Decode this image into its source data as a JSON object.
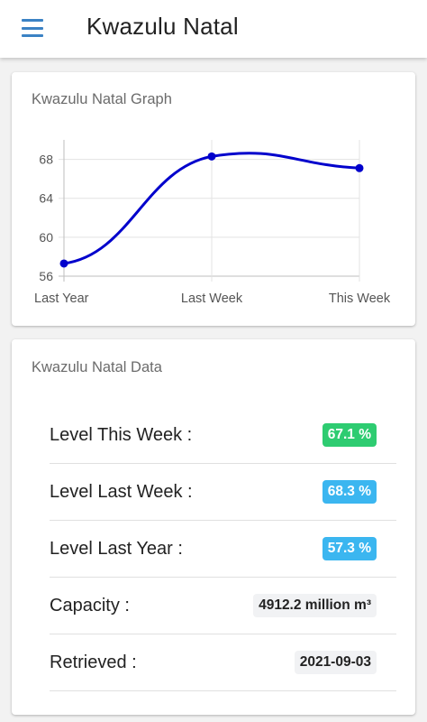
{
  "appbar": {
    "title": "Kwazulu Natal",
    "menu_icon": "hamburger-menu-icon",
    "accent": "#3b82c4"
  },
  "graph_card": {
    "title": "Kwazulu Natal Graph"
  },
  "chart_data": {
    "type": "line",
    "categories": [
      "Last Year",
      "Last Week",
      "This Week"
    ],
    "series": [
      {
        "values": [
          57.3,
          68.3,
          67.1
        ],
        "color": "#0000cc"
      }
    ],
    "yticks": [
      56,
      60,
      64,
      68
    ],
    "ylim": [
      56,
      70
    ],
    "grid": true,
    "smooth": true
  },
  "data_card": {
    "title": "Kwazulu Natal Data",
    "rows": [
      {
        "label": "Level This Week :",
        "value": "67.1 %",
        "style": "green"
      },
      {
        "label": "Level Last Week :",
        "value": "68.3 %",
        "style": "blue"
      },
      {
        "label": "Level Last Year :",
        "value": "57.3 %",
        "style": "blue"
      },
      {
        "label": "Capacity :",
        "value": "4912.2 million m³",
        "style": "plain"
      },
      {
        "label": "Retrieved :",
        "value": "2021-09-03",
        "style": "plain"
      }
    ]
  },
  "colors": {
    "green": "#2ecc71",
    "blue": "#3bb6f0",
    "line": "#0000cc"
  }
}
